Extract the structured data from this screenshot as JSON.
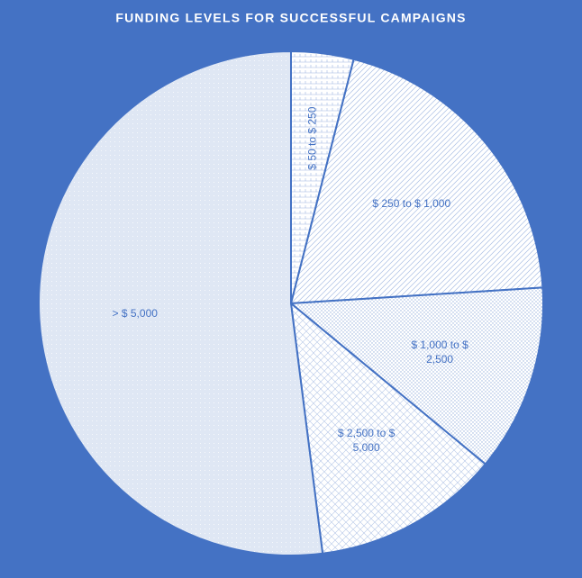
{
  "chart_data": {
    "type": "pie",
    "title": "FUNDING LEVELS FOR SUCCESSFUL CAMPAIGNS",
    "categories": [
      "$ 50 to $ 250",
      "$ 250 to $ 1,000",
      "$ 1,000 to $ 2,500",
      "$ 2,500 to $ 5,000",
      "> $ 5,000"
    ],
    "values": [
      4,
      20,
      12,
      12,
      52
    ],
    "colors": [
      "#e4ecf7",
      "#e9effa",
      "#dfe8f5",
      "#f2f6fc",
      "#dbe5f3"
    ]
  }
}
